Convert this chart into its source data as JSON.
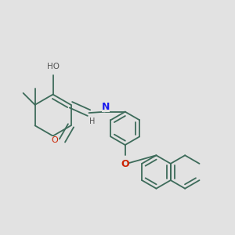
{
  "background_color": "#e2e2e2",
  "bond_color": "#3d6b5a",
  "bond_width": 1.3,
  "O_color": "#cc2200",
  "N_color": "#1a1aee",
  "C_color": "#3d6b5a",
  "label_fontsize": 7.5,
  "figsize": [
    3.0,
    3.0
  ],
  "dpi": 100,
  "xlim": [
    0,
    10
  ],
  "ylim": [
    0,
    10
  ]
}
